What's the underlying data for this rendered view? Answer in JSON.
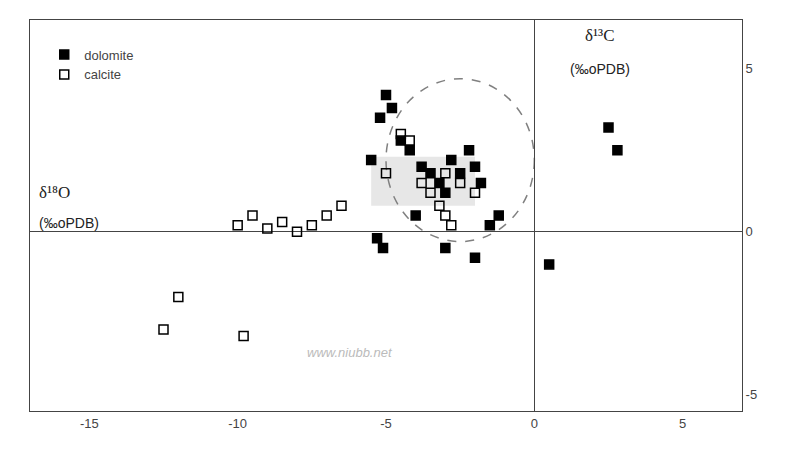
{
  "chart_data": {
    "type": "scatter",
    "xlabel": [
      "δ¹⁸O",
      "(‰oPDB)"
    ],
    "ylabel": [
      "δ¹³C",
      "(‰oPDB)"
    ],
    "annotations": [
      "www.niubb.net"
    ],
    "series": [
      {
        "name": "dolomite",
        "color": "black",
        "marker": "square",
        "x": [
          -5.2,
          -5.0,
          -4.8,
          -4.5,
          -4.2,
          -3.8,
          -3.5,
          -3.2,
          -3.0,
          -2.8,
          -2.5,
          -2.2,
          -2.0,
          -1.8,
          -1.5,
          -1.2,
          -5.5,
          -4.0,
          -3.0,
          -2.0,
          2.5,
          2.8,
          0.5,
          -5.3,
          -5.1
        ],
        "values": [
          3.5,
          4.2,
          3.8,
          2.8,
          2.5,
          2.0,
          1.8,
          1.5,
          1.2,
          2.2,
          1.8,
          2.5,
          2.0,
          1.5,
          0.2,
          0.5,
          2.2,
          0.5,
          -0.5,
          -0.8,
          3.2,
          2.5,
          -1.0,
          -0.2,
          -0.5
        ]
      },
      {
        "name": "calcite",
        "color": "black",
        "marker": "square-open",
        "x": [
          -4.5,
          -4.2,
          -3.8,
          -3.5,
          -3.2,
          -3.0,
          -2.8,
          -5.0,
          -6.5,
          -7.0,
          -7.5,
          -8.0,
          -8.5,
          -9.0,
          -9.5,
          -10.0,
          -12.0,
          -12.5,
          -9.8,
          -2.5,
          -2.0,
          -3.0
        ],
        "values": [
          3.0,
          2.8,
          1.5,
          1.2,
          0.8,
          0.5,
          0.2,
          1.8,
          0.8,
          0.5,
          0.2,
          0.0,
          0.3,
          0.1,
          0.5,
          0.2,
          -2.0,
          -3.0,
          -3.2,
          1.5,
          1.2,
          1.8
        ]
      }
    ],
    "xlim": [
      -17,
      7
    ],
    "ylim": [
      -5.5,
      6.5
    ],
    "xticks": [
      -15,
      -10,
      -5,
      0,
      5
    ],
    "yticks": [
      -5,
      0,
      5
    ],
    "grid": false,
    "legend": "upper left",
    "shapes": [
      {
        "type": "rect",
        "x": -5.5,
        "y": 0.8,
        "width": 3.5,
        "height": 1.5,
        "color": "#d0d0d0"
      },
      {
        "type": "ellipse",
        "x": -2.5,
        "y": 2.2,
        "width": 5.0,
        "height": 5.0,
        "color": "gray",
        "line_style": "dashed"
      }
    ]
  }
}
